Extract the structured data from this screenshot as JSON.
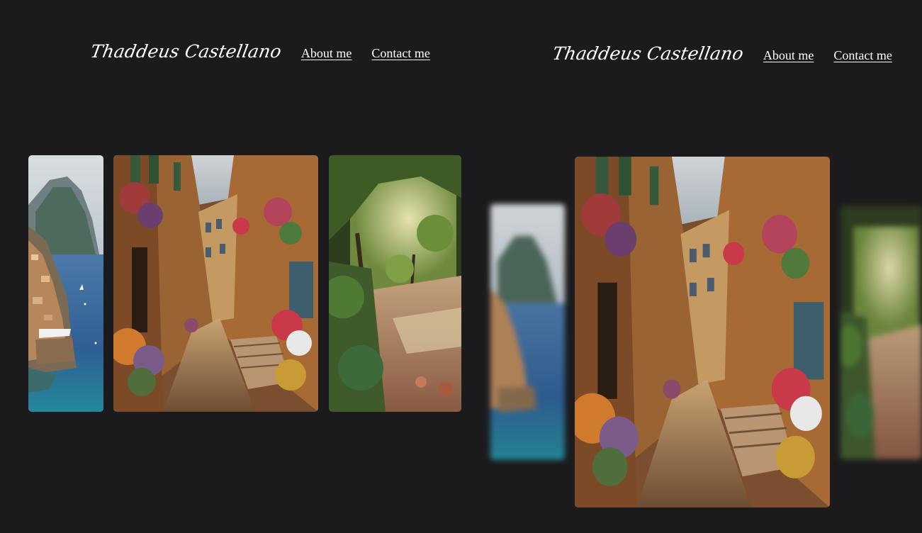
{
  "left_view": {
    "header": {
      "brand": "Thaddeus Castellano",
      "nav": [
        {
          "label": "About me"
        },
        {
          "label": "Contact me"
        }
      ]
    }
  },
  "right_view": {
    "header": {
      "brand": "Thaddeus Castellano",
      "nav": [
        {
          "label": "About me"
        },
        {
          "label": "Contact me"
        }
      ]
    }
  },
  "gallery": {
    "images": [
      {
        "name": "coastal-cliff-village"
      },
      {
        "name": "flowered-alley-street"
      },
      {
        "name": "sunlit-garden-path"
      }
    ]
  },
  "colors": {
    "background": "#1b1b1d",
    "text": "#ffffff"
  }
}
